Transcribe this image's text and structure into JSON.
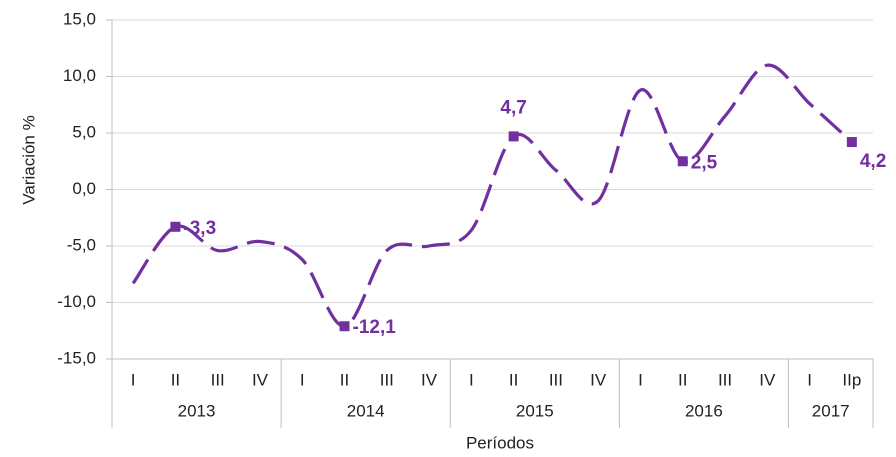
{
  "chart_data": {
    "type": "line",
    "y_label": "Variación %",
    "x_label": "Períodos",
    "categories": [
      "I",
      "II",
      "III",
      "IV",
      "I",
      "II",
      "III",
      "IV",
      "I",
      "II",
      "III",
      "IV",
      "I",
      "II",
      "III",
      "IV",
      "I",
      "IIp"
    ],
    "groups": [
      "2013",
      "2014",
      "2015",
      "2016",
      "2017"
    ],
    "group_sizes": [
      4,
      4,
      4,
      4,
      2
    ],
    "series": [
      {
        "color": "#7030a0",
        "values": [
          -8.3,
          -3.3,
          -5.4,
          -4.6,
          -6.2,
          -12.1,
          -5.4,
          -5.0,
          -3.6,
          4.7,
          1.7,
          -1.0,
          8.8,
          2.5,
          6.5,
          11.0,
          7.6,
          4.2
        ],
        "value_labels": [
          null,
          "-3,3",
          null,
          null,
          null,
          "-12,1",
          null,
          null,
          null,
          "4,7",
          null,
          null,
          null,
          "2,5",
          null,
          null,
          null,
          "4,2"
        ]
      }
    ],
    "ylim": [
      -15,
      15
    ],
    "yticks": [
      {
        "value": -15,
        "label": "-15,0"
      },
      {
        "value": -10,
        "label": "-10,0"
      },
      {
        "value": -5,
        "label": "-5,0"
      },
      {
        "value": 0,
        "label": "0,0"
      },
      {
        "value": 5,
        "label": "5,0"
      },
      {
        "value": 10,
        "label": "10,0"
      },
      {
        "value": 15,
        "label": "15,0"
      }
    ],
    "grid": true
  }
}
